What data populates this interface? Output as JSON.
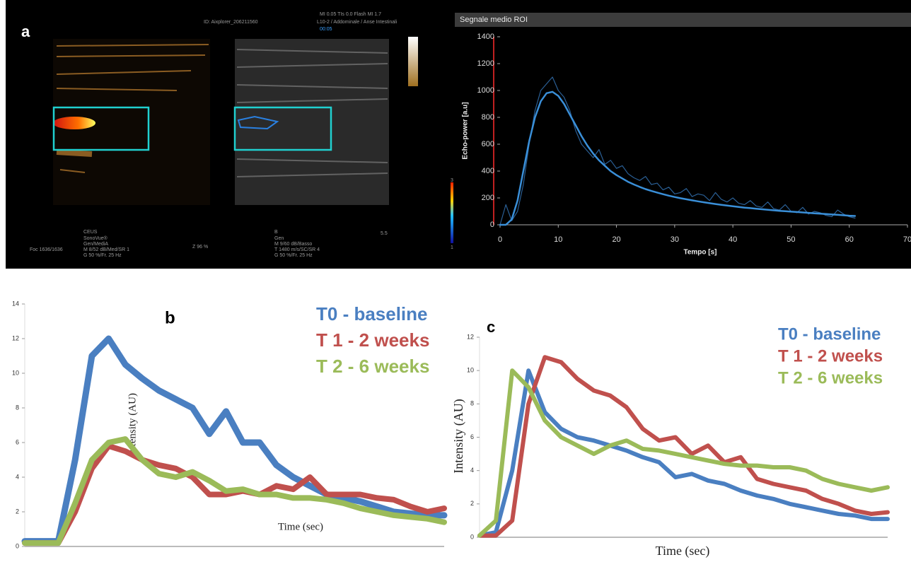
{
  "ultrasound": {
    "texts": [
      "ID: Aixplorer_206211560",
      "MI 0.05  TIs 0.0  Flash MI 1.7",
      "L10-2 / Addominale / Anse Intestinali",
      "00:05",
      "CEUS",
      "SonoVue®",
      "Gen/MediA",
      "M 8/52 dB/Med/SR 1",
      "G 50 %/Fr. 25 Hz",
      "Z 96 %",
      "Foc 1636/1636",
      "B",
      "Gen",
      "M 9/60 dB/Basso",
      "T 1480 m/s/SC/SR 4",
      "G 50 %/Fr. 25 Hz",
      "5.5",
      "3",
      "1"
    ]
  },
  "chart_data": [
    {
      "type": "line",
      "panel": "a",
      "title": "Segnale medio ROI",
      "xlabel": "Tempo [s]",
      "ylabel": "Echo-power [a.u]",
      "x": [
        0,
        1,
        2,
        3,
        4,
        5,
        6,
        7,
        8,
        9,
        10,
        11,
        12,
        13,
        14,
        15,
        16,
        17,
        18,
        19,
        20,
        21,
        22,
        23,
        24,
        25,
        26,
        27,
        28,
        29,
        30,
        31,
        32,
        33,
        34,
        35,
        36,
        37,
        38,
        39,
        40,
        41,
        42,
        43,
        44,
        45,
        46,
        47,
        48,
        49,
        50,
        51,
        52,
        53,
        54,
        55,
        56,
        57,
        58,
        59,
        60,
        61
      ],
      "xlim": [
        0,
        70
      ],
      "xticks": [
        0,
        10,
        20,
        30,
        40,
        50,
        60,
        70
      ],
      "ylim": [
        0,
        1400
      ],
      "yticks": [
        0,
        200,
        400,
        600,
        800,
        1000,
        1200,
        1400
      ],
      "series": [
        {
          "color": "#2a5f95",
          "values": [
            0,
            150,
            30,
            100,
            300,
            600,
            850,
            1000,
            1050,
            1100,
            1000,
            950,
            850,
            700,
            600,
            550,
            500,
            560,
            450,
            480,
            420,
            440,
            380,
            350,
            330,
            360,
            300,
            310,
            260,
            280,
            230,
            240,
            270,
            210,
            230,
            220,
            180,
            240,
            190,
            170,
            200,
            160,
            150,
            180,
            140,
            130,
            170,
            120,
            110,
            150,
            100,
            90,
            130,
            80,
            100,
            90,
            70,
            60,
            110,
            80,
            60,
            50
          ]
        },
        {
          "color": "#3a8fd8",
          "values": [
            0,
            0,
            40,
            180,
            400,
            620,
            800,
            920,
            980,
            990,
            960,
            900,
            820,
            740,
            660,
            590,
            530,
            480,
            440,
            400,
            370,
            345,
            320,
            300,
            282,
            266,
            252,
            240,
            228,
            217,
            207,
            198,
            190,
            182,
            175,
            168,
            161,
            155,
            149,
            143,
            138,
            133,
            128,
            124,
            120,
            116,
            112,
            108,
            104,
            101,
            98,
            95,
            92,
            89,
            86,
            83,
            80,
            77,
            74,
            71,
            68,
            66
          ]
        }
      ]
    },
    {
      "type": "line",
      "panel": "b",
      "xlabel": "Time (sec)",
      "ylabel": "Intensity (AU)",
      "x": [
        0,
        4,
        8,
        12,
        16,
        20,
        24,
        28,
        32,
        36,
        40,
        44,
        48,
        52,
        56,
        60,
        64,
        68,
        72,
        76,
        80,
        84,
        88,
        92,
        96,
        100
      ],
      "xlim": [
        0,
        100
      ],
      "ylim": [
        0,
        14
      ],
      "yticks": [
        0,
        2,
        4,
        6,
        8,
        10,
        12,
        14
      ],
      "series": [
        {
          "name": "T0 - baseline",
          "color": "#4a7fc1",
          "values": [
            0.3,
            0.3,
            0.3,
            5,
            11,
            12,
            10.5,
            9.7,
            9,
            8.5,
            8,
            6.5,
            7.8,
            6,
            6,
            4.7,
            4,
            3.5,
            3,
            2.8,
            2.6,
            2.3,
            2,
            1.9,
            1.8,
            1.8
          ]
        },
        {
          "name": "T 1 - 2 weeks",
          "color": "#c0504d",
          "values": [
            0.2,
            0.2,
            0.2,
            2,
            4.5,
            5.8,
            5.5,
            5,
            4.7,
            4.5,
            4,
            3,
            3,
            3.2,
            3,
            3.5,
            3.3,
            4,
            3,
            3,
            3,
            2.8,
            2.7,
            2.3,
            2,
            2.2
          ]
        },
        {
          "name": "T 2  - 6 weeks",
          "color": "#9bbb59",
          "values": [
            0.2,
            0.2,
            0.2,
            2.5,
            5,
            6,
            6.2,
            5,
            4.2,
            4,
            4.3,
            3.8,
            3.2,
            3.3,
            3,
            3,
            2.8,
            2.8,
            2.7,
            2.5,
            2.2,
            2,
            1.8,
            1.7,
            1.6,
            1.4
          ]
        }
      ]
    },
    {
      "type": "line",
      "panel": "c",
      "xlabel": "Time (sec)",
      "ylabel": "Intensity (AU)",
      "x": [
        0,
        4,
        8,
        12,
        16,
        20,
        24,
        28,
        32,
        36,
        40,
        44,
        48,
        52,
        56,
        60,
        64,
        68,
        72,
        76,
        80,
        84,
        88,
        92,
        96,
        100
      ],
      "xlim": [
        0,
        100
      ],
      "ylim": [
        0,
        12
      ],
      "yticks": [
        0,
        2,
        4,
        6,
        8,
        10,
        12
      ],
      "series": [
        {
          "name": "T0 - baseline",
          "color": "#4a7fc1",
          "values": [
            0.1,
            0.3,
            4,
            10,
            7.5,
            6.5,
            6,
            5.8,
            5.5,
            5.2,
            4.8,
            4.5,
            3.6,
            3.8,
            3.4,
            3.2,
            2.8,
            2.5,
            2.3,
            2,
            1.8,
            1.6,
            1.4,
            1.3,
            1.1,
            1.1
          ]
        },
        {
          "name": "T 1 - 2 weeks",
          "color": "#c0504d",
          "values": [
            0.1,
            0.1,
            1,
            8,
            10.8,
            10.5,
            9.5,
            8.8,
            8.5,
            7.8,
            6.5,
            5.8,
            6,
            5,
            5.5,
            4.5,
            4.8,
            3.5,
            3.2,
            3,
            2.8,
            2.3,
            2,
            1.6,
            1.4,
            1.5
          ]
        },
        {
          "name": "T 2 - 6 weeks",
          "color": "#9bbb59",
          "values": [
            0.1,
            1,
            10,
            9,
            7,
            6,
            5.5,
            5,
            5.5,
            5.8,
            5.3,
            5.2,
            5,
            4.8,
            4.6,
            4.4,
            4.3,
            4.3,
            4.2,
            4.2,
            4,
            3.5,
            3.2,
            3,
            2.8,
            3
          ]
        }
      ]
    }
  ]
}
